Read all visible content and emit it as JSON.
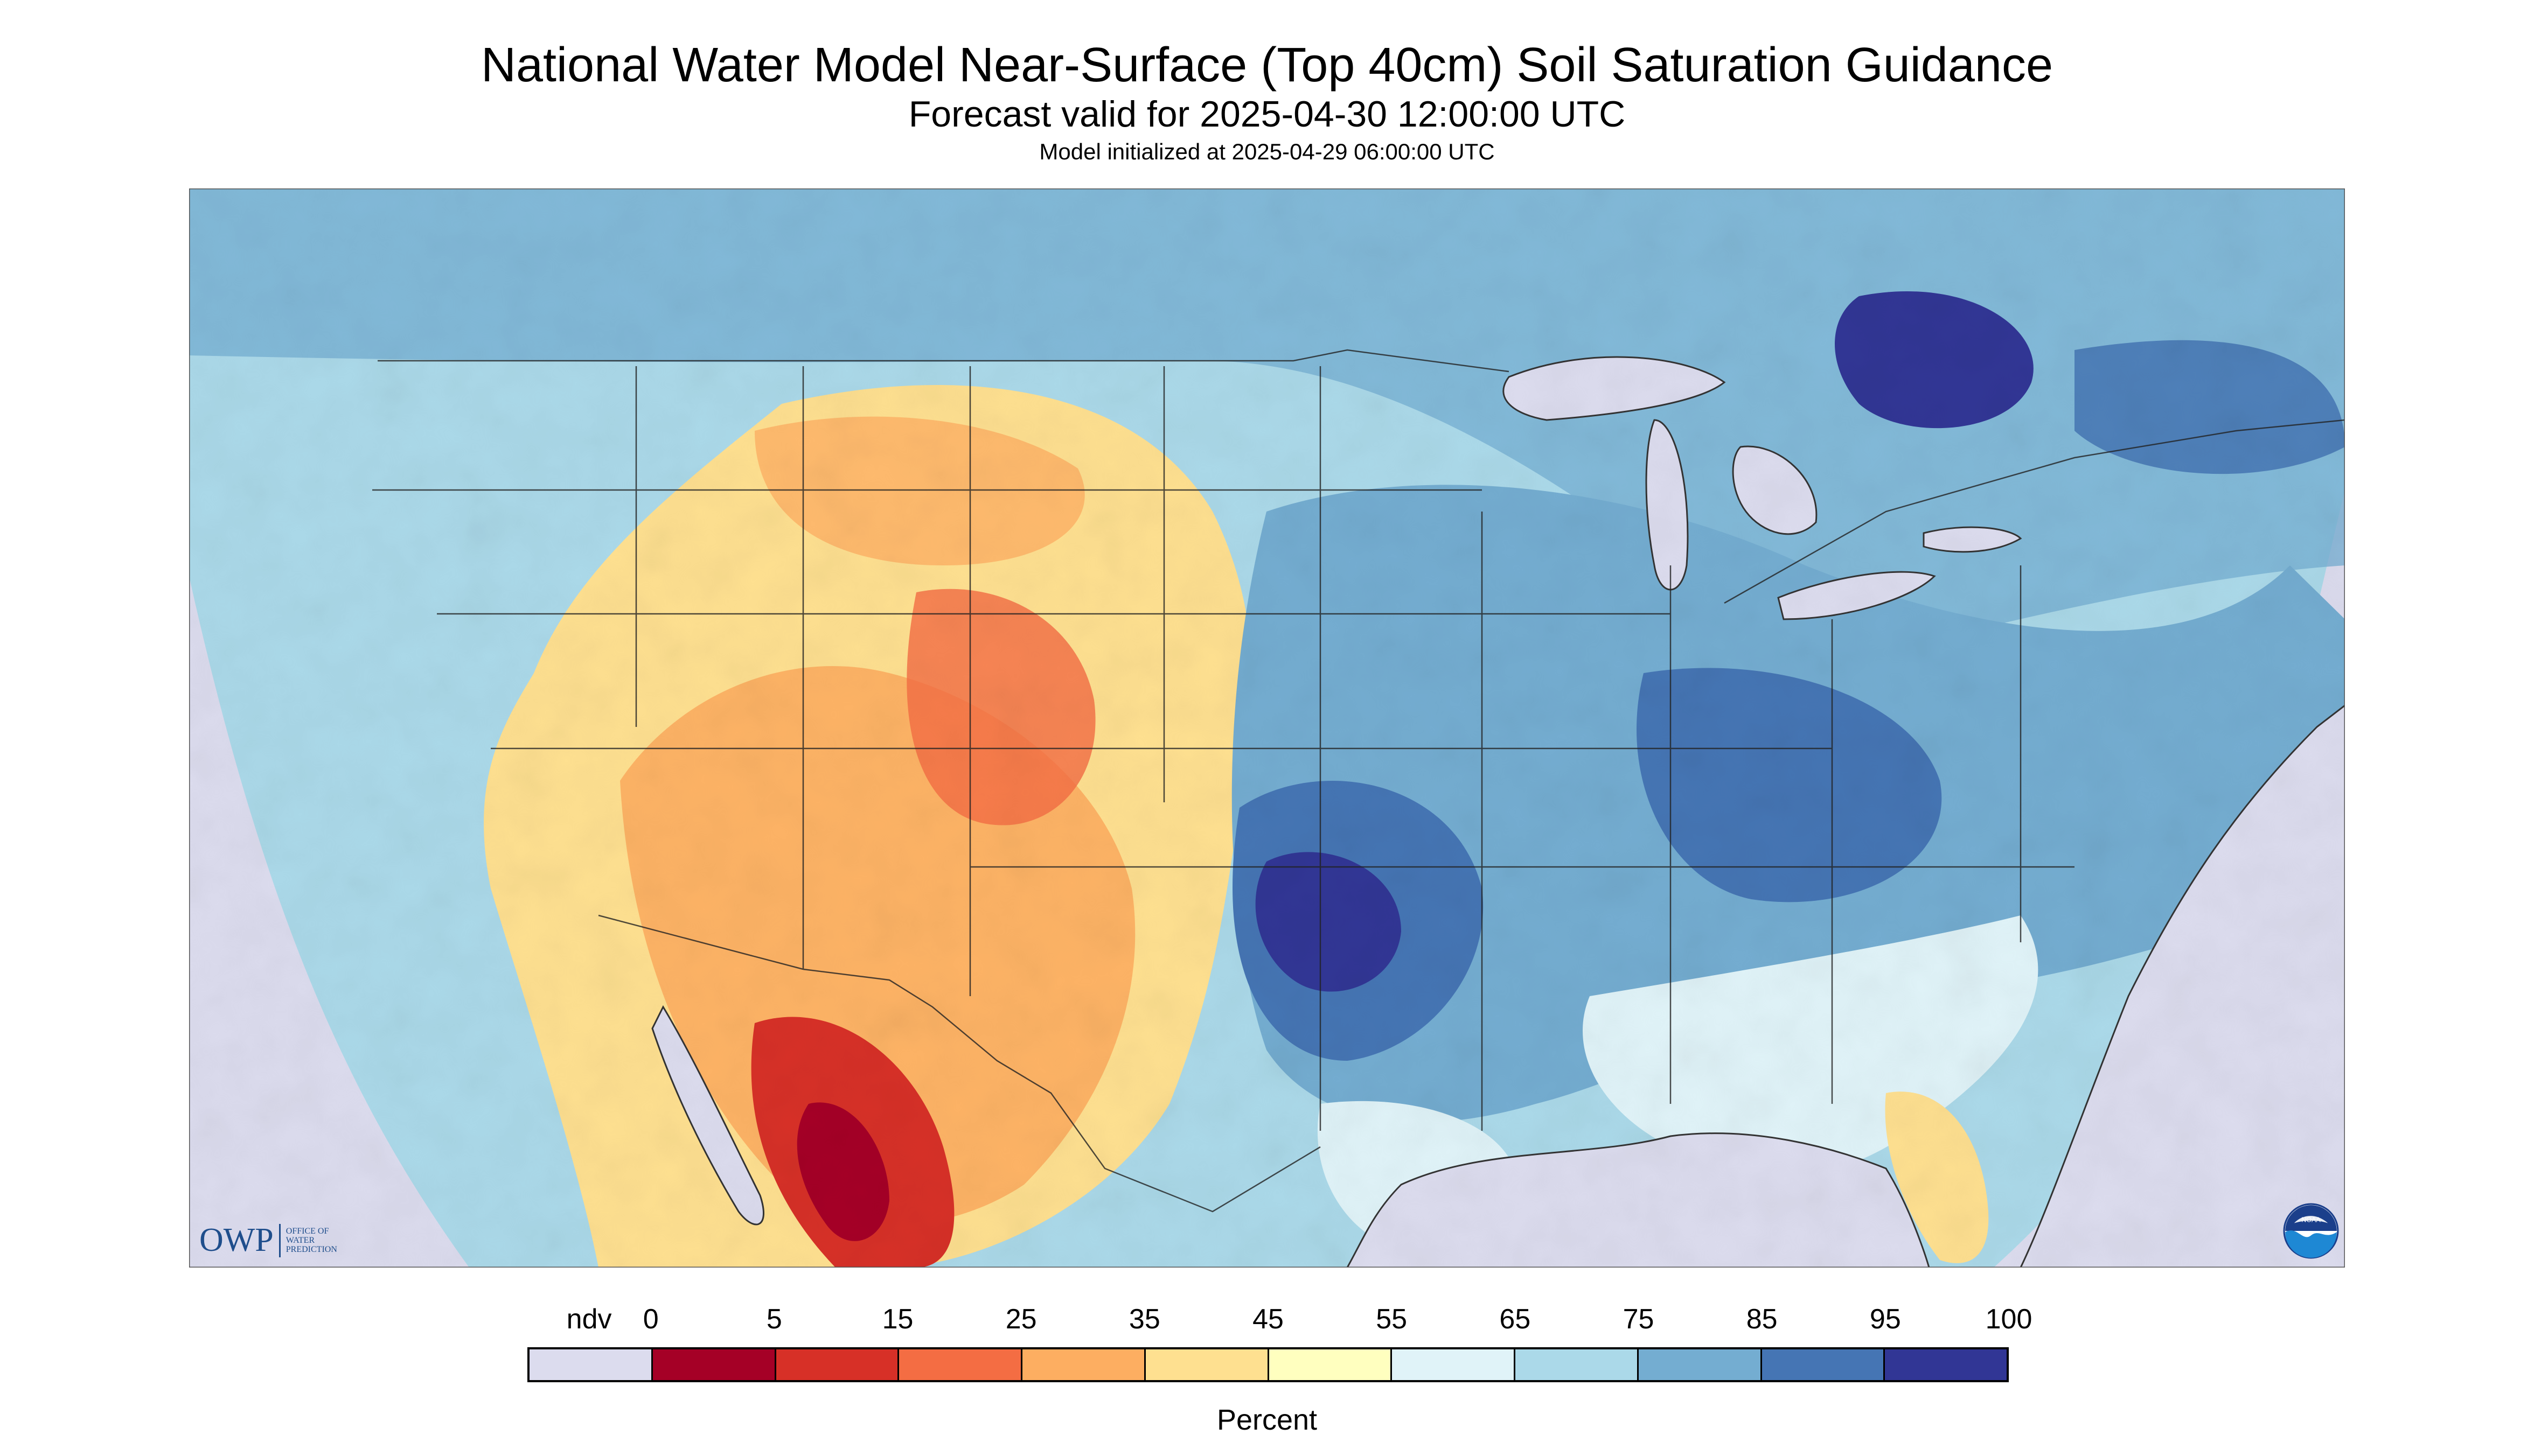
{
  "title": "National Water Model Near-Surface (Top 40cm) Soil Saturation Guidance",
  "subtitle": "Forecast valid for 2025-04-30 12:00:00 UTC",
  "init_text": "Model initialized at 2025-04-29 06:00:00 UTC",
  "logos": {
    "owp_text": "OWP",
    "owp_sub": [
      "OFFICE OF",
      "WATER",
      "PREDICTION"
    ],
    "noaa_text": "NOAA"
  },
  "legend": {
    "units": "Percent",
    "labels": [
      "ndv",
      "0",
      "5",
      "15",
      "25",
      "35",
      "45",
      "55",
      "65",
      "75",
      "85",
      "95",
      "100"
    ],
    "colors": [
      "#dcdcee",
      "#a50026",
      "#d73027",
      "#f46d43",
      "#fdae61",
      "#fee090",
      "#ffffbf",
      "#e0f3f8",
      "#abd9e9",
      "#74add1",
      "#4575b4",
      "#313695"
    ]
  },
  "map_colors": {
    "nodata": "#dcdcee",
    "water": "#dcdcee",
    "ocean_lake_outline": "#333333",
    "border": "#222222"
  }
}
